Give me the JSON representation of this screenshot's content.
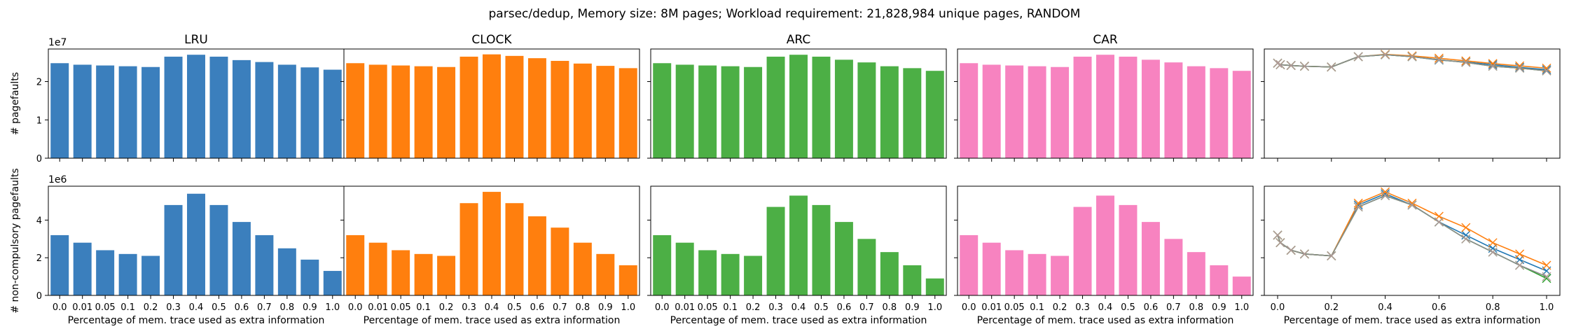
{
  "figure": {
    "suptitle": "parsec/dedup, Memory size: 8M pages; Workload requirement: 21,828,984 unique pages, RANDOM"
  },
  "colors": {
    "LRU": "#3b7fbd",
    "CLOCK": "#ff7f0e",
    "ARC": "#4caf45",
    "CAR": "#f783c0",
    "line_LRU": "#1f77b4",
    "line_CLOCK": "#ff7f0e",
    "line_ARC": "#2ca02c",
    "line_CAR": "#8c8c8c",
    "marker": "#b39999"
  },
  "chart_data": {
    "type": "bar",
    "categories": [
      "0.0",
      "0.01",
      "0.05",
      "0.1",
      "0.2",
      "0.3",
      "0.4",
      "0.5",
      "0.6",
      "0.7",
      "0.8",
      "0.9",
      "1.0"
    ],
    "x_numeric": [
      0.0,
      0.01,
      0.05,
      0.1,
      0.2,
      0.3,
      0.4,
      0.5,
      0.6,
      0.7,
      0.8,
      0.9,
      1.0
    ],
    "xlabel": "Percentage of mem. trace used as extra information",
    "panel_titles": [
      "LRU",
      "CLOCK",
      "ARC",
      "CAR",
      ""
    ],
    "rows": [
      {
        "ylabel": "# pagefaults",
        "scale_label": "1e7",
        "scale": 10000000,
        "ylim": [
          0,
          28500000
        ],
        "yticks": [
          0,
          1,
          2
        ],
        "series": [
          {
            "name": "LRU",
            "values": [
              24800000,
              24400000,
              24200000,
              24000000,
              23800000,
              26500000,
              27000000,
              26500000,
              25600000,
              25100000,
              24400000,
              23700000,
              23100000
            ]
          },
          {
            "name": "CLOCK",
            "values": [
              24800000,
              24400000,
              24200000,
              24000000,
              23800000,
              26500000,
              27100000,
              26700000,
              26100000,
              25400000,
              24700000,
              24100000,
              23500000
            ]
          },
          {
            "name": "ARC",
            "values": [
              24800000,
              24400000,
              24200000,
              24000000,
              23800000,
              26500000,
              27000000,
              26500000,
              25700000,
              25000000,
              24000000,
              23500000,
              22800000
            ]
          },
          {
            "name": "CAR",
            "values": [
              24800000,
              24400000,
              24200000,
              24000000,
              23800000,
              26500000,
              27000000,
              26500000,
              25700000,
              25000000,
              24000000,
              23500000,
              22800000
            ]
          }
        ]
      },
      {
        "ylabel": "# non-compulsory pagefaults",
        "scale_label": "1e6",
        "scale": 1000000,
        "ylim": [
          0,
          5800000
        ],
        "yticks": [
          0,
          2,
          4
        ],
        "series": [
          {
            "name": "LRU",
            "values": [
              3200000,
              2800000,
              2400000,
              2200000,
              2100000,
              4800000,
              5400000,
              4800000,
              3900000,
              3200000,
              2500000,
              1900000,
              1300000
            ]
          },
          {
            "name": "CLOCK",
            "values": [
              3200000,
              2800000,
              2400000,
              2200000,
              2100000,
              4900000,
              5500000,
              4900000,
              4200000,
              3600000,
              2800000,
              2200000,
              1600000
            ]
          },
          {
            "name": "ARC",
            "values": [
              3200000,
              2800000,
              2400000,
              2200000,
              2100000,
              4700000,
              5300000,
              4800000,
              3900000,
              3000000,
              2300000,
              1600000,
              900000
            ]
          },
          {
            "name": "CAR",
            "values": [
              3200000,
              2800000,
              2400000,
              2200000,
              2100000,
              4700000,
              5300000,
              4800000,
              3900000,
              3000000,
              2300000,
              1600000,
              1000000
            ]
          }
        ]
      }
    ],
    "line_xticks": [
      "0.0",
      "0.2",
      "0.4",
      "0.6",
      "0.8",
      "1.0"
    ],
    "grid": false,
    "legend": "none"
  }
}
